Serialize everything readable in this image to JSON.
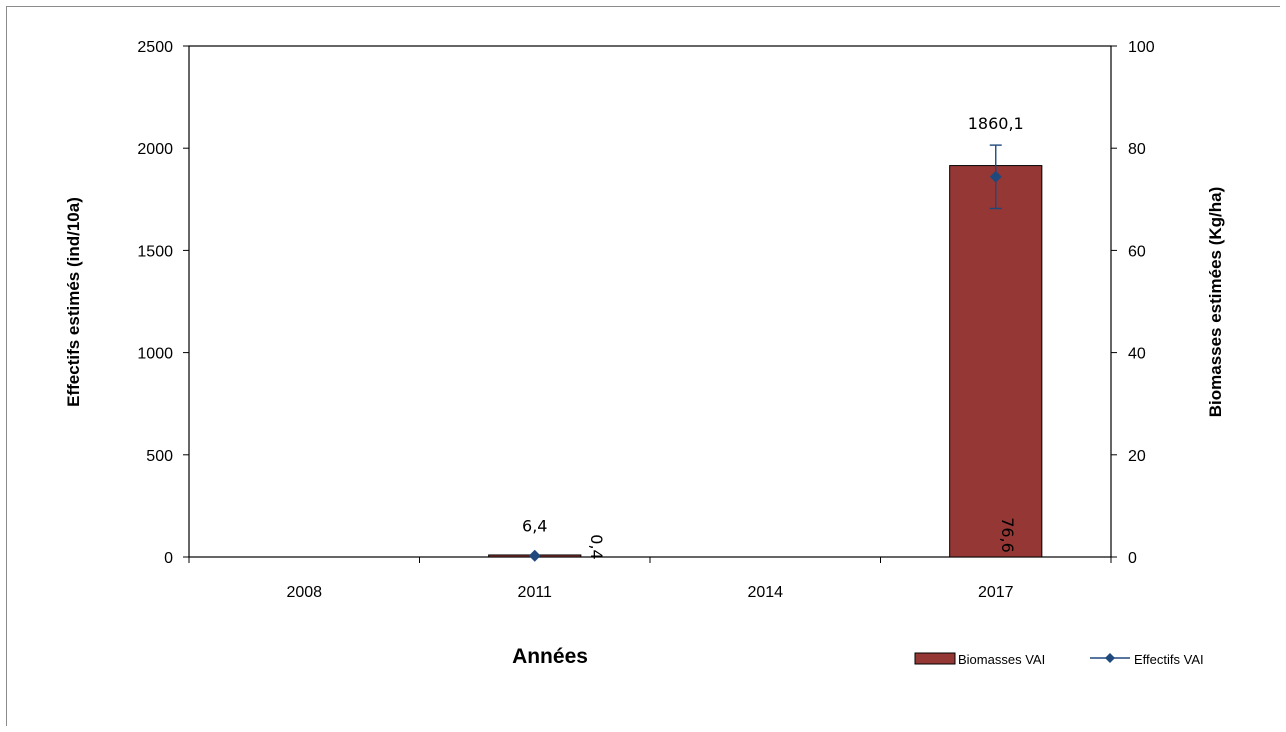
{
  "chart_data": {
    "type": "bar",
    "categories": [
      "2008",
      "2011",
      "2014",
      "2017"
    ],
    "xlabel": "Années",
    "ylabel": "Effectifs estimés  (ind/10a)",
    "y2label": "Biomasses estimées  (Kg/ha)",
    "ylim": [
      0,
      2500
    ],
    "y2lim": [
      0,
      100
    ],
    "yticks": [
      "0",
      "500",
      "1000",
      "1500",
      "2000",
      "2500"
    ],
    "y2ticks": [
      "0",
      "20",
      "40",
      "60",
      "80",
      "100"
    ],
    "legend_position": "bottom-right",
    "series": [
      {
        "name": "Biomasses VAI",
        "kind": "bar",
        "axis": "right",
        "color": "#953735",
        "values": [
          null,
          0.4,
          null,
          76.6
        ],
        "labels": [
          "",
          "0,4",
          "",
          "76,6"
        ]
      },
      {
        "name": "Effectifs VAI",
        "kind": "line",
        "axis": "left",
        "color": "#1f497d",
        "marker": "diamond",
        "values": [
          null,
          6.4,
          null,
          1860.1
        ],
        "labels": [
          "",
          "6,4",
          "",
          "1860,1"
        ],
        "error": [
          null,
          null,
          null,
          155
        ]
      }
    ]
  }
}
